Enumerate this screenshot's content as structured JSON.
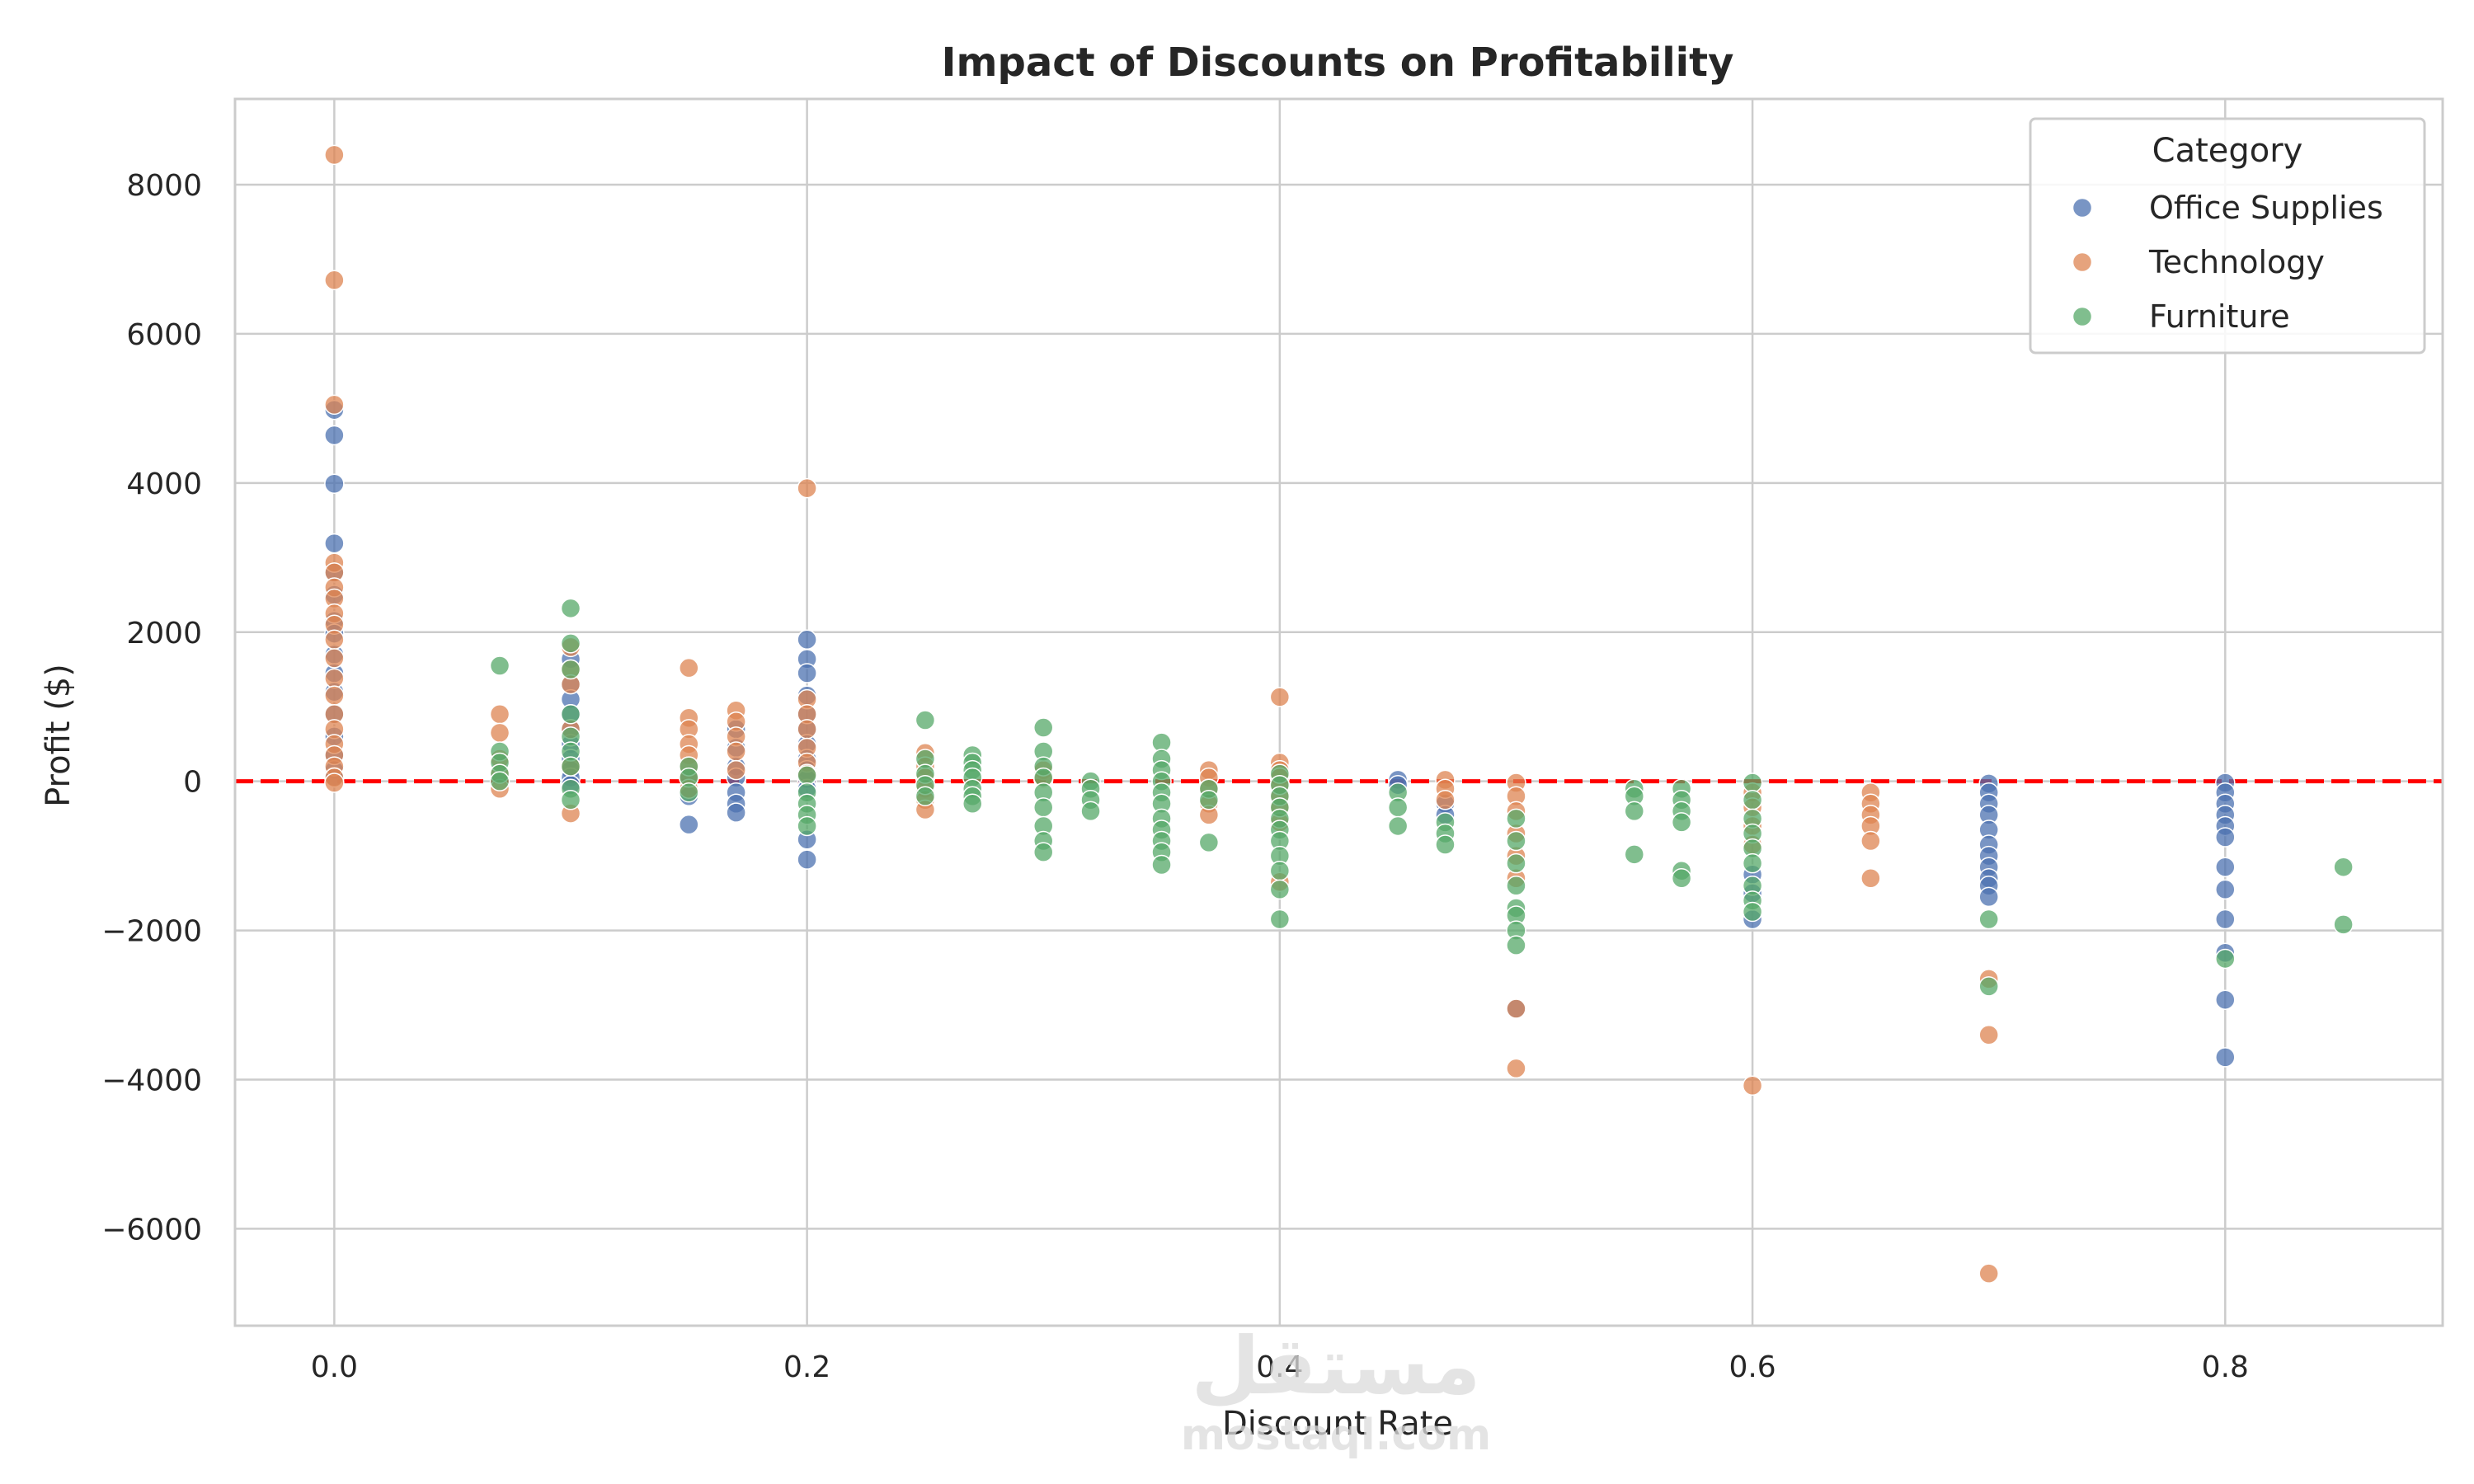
{
  "chart_data": {
    "type": "scatter",
    "title": "Impact of Discounts on Profitability",
    "xlabel": "Discount Rate",
    "ylabel": "Profit ($)",
    "xlim": [
      -0.042,
      0.892
    ],
    "ylim": [
      -7300,
      9150
    ],
    "xticks": [
      0.0,
      0.2,
      0.4,
      0.6,
      0.8
    ],
    "xtick_labels": [
      "0.0",
      "0.2",
      "0.4",
      "0.6",
      "0.8"
    ],
    "yticks": [
      -6000,
      -4000,
      -2000,
      0,
      2000,
      4000,
      6000,
      8000
    ],
    "ytick_labels": [
      "−6000",
      "−4000",
      "−2000",
      "0",
      "2000",
      "4000",
      "6000",
      "8000"
    ],
    "grid": true,
    "reference_line": {
      "y": 0,
      "color": "#ff0000",
      "style": "dashed"
    },
    "legend": {
      "title": "Category",
      "position": "top-right",
      "entries": [
        "Office Supplies",
        "Technology",
        "Furniture"
      ]
    },
    "series": [
      {
        "name": "Office Supplies",
        "color": "#4c72b0",
        "points": [
          [
            0.0,
            4980
          ],
          [
            0.0,
            4640
          ],
          [
            0.0,
            3990
          ],
          [
            0.0,
            3190
          ],
          [
            0.0,
            2800
          ],
          [
            0.0,
            2500
          ],
          [
            0.0,
            2150
          ],
          [
            0.0,
            1980
          ],
          [
            0.0,
            1700
          ],
          [
            0.0,
            1450
          ],
          [
            0.0,
            1200
          ],
          [
            0.0,
            900
          ],
          [
            0.0,
            600
          ],
          [
            0.0,
            350
          ],
          [
            0.0,
            150
          ],
          [
            0.0,
            60
          ],
          [
            0.1,
            1640
          ],
          [
            0.1,
            1300
          ],
          [
            0.1,
            1100
          ],
          [
            0.1,
            900
          ],
          [
            0.1,
            700
          ],
          [
            0.1,
            500
          ],
          [
            0.1,
            300
          ],
          [
            0.1,
            150
          ],
          [
            0.1,
            50
          ],
          [
            0.1,
            -50
          ],
          [
            0.15,
            -580
          ],
          [
            0.15,
            -200
          ],
          [
            0.15,
            80
          ],
          [
            0.17,
            700
          ],
          [
            0.17,
            450
          ],
          [
            0.17,
            200
          ],
          [
            0.17,
            50
          ],
          [
            0.17,
            -150
          ],
          [
            0.17,
            -300
          ],
          [
            0.17,
            -420
          ],
          [
            0.2,
            1900
          ],
          [
            0.2,
            1640
          ],
          [
            0.2,
            1450
          ],
          [
            0.2,
            1150
          ],
          [
            0.2,
            900
          ],
          [
            0.2,
            700
          ],
          [
            0.2,
            500
          ],
          [
            0.2,
            300
          ],
          [
            0.2,
            150
          ],
          [
            0.2,
            30
          ],
          [
            0.2,
            -100
          ],
          [
            0.2,
            -780
          ],
          [
            0.2,
            -1050
          ],
          [
            0.45,
            20
          ],
          [
            0.45,
            -50
          ],
          [
            0.47,
            -300
          ],
          [
            0.47,
            -450
          ],
          [
            0.5,
            -3050
          ],
          [
            0.6,
            -1250
          ],
          [
            0.6,
            -1500
          ],
          [
            0.6,
            -1850
          ],
          [
            0.7,
            -30
          ],
          [
            0.7,
            -150
          ],
          [
            0.7,
            -300
          ],
          [
            0.7,
            -450
          ],
          [
            0.7,
            -650
          ],
          [
            0.7,
            -850
          ],
          [
            0.7,
            -1000
          ],
          [
            0.7,
            -1150
          ],
          [
            0.7,
            -1300
          ],
          [
            0.7,
            -1400
          ],
          [
            0.7,
            -1550
          ],
          [
            0.8,
            -20
          ],
          [
            0.8,
            -150
          ],
          [
            0.8,
            -300
          ],
          [
            0.8,
            -450
          ],
          [
            0.8,
            -600
          ],
          [
            0.8,
            -750
          ],
          [
            0.8,
            -1150
          ],
          [
            0.8,
            -1450
          ],
          [
            0.8,
            -1850
          ],
          [
            0.8,
            -2300
          ],
          [
            0.8,
            -2930
          ],
          [
            0.8,
            -3700
          ]
        ]
      },
      {
        "name": "Technology",
        "color": "#dd8452",
        "points": [
          [
            0.0,
            8400
          ],
          [
            0.0,
            6720
          ],
          [
            0.0,
            5050
          ],
          [
            0.0,
            2930
          ],
          [
            0.0,
            2800
          ],
          [
            0.0,
            2600
          ],
          [
            0.0,
            2450
          ],
          [
            0.0,
            2250
          ],
          [
            0.0,
            2100
          ],
          [
            0.0,
            1900
          ],
          [
            0.0,
            1650
          ],
          [
            0.0,
            1380
          ],
          [
            0.0,
            1150
          ],
          [
            0.0,
            900
          ],
          [
            0.0,
            700
          ],
          [
            0.0,
            500
          ],
          [
            0.0,
            350
          ],
          [
            0.0,
            200
          ],
          [
            0.0,
            50
          ],
          [
            0.0,
            -20
          ],
          [
            0.07,
            900
          ],
          [
            0.07,
            650
          ],
          [
            0.07,
            300
          ],
          [
            0.07,
            100
          ],
          [
            0.07,
            -100
          ],
          [
            0.1,
            1800
          ],
          [
            0.1,
            1500
          ],
          [
            0.1,
            1300
          ],
          [
            0.1,
            700
          ],
          [
            0.1,
            200
          ],
          [
            0.1,
            -430
          ],
          [
            0.15,
            1520
          ],
          [
            0.15,
            850
          ],
          [
            0.15,
            700
          ],
          [
            0.15,
            500
          ],
          [
            0.15,
            350
          ],
          [
            0.15,
            200
          ],
          [
            0.15,
            50
          ],
          [
            0.15,
            -100
          ],
          [
            0.17,
            950
          ],
          [
            0.17,
            800
          ],
          [
            0.17,
            600
          ],
          [
            0.17,
            400
          ],
          [
            0.17,
            150
          ],
          [
            0.2,
            3930
          ],
          [
            0.2,
            1100
          ],
          [
            0.2,
            900
          ],
          [
            0.2,
            700
          ],
          [
            0.2,
            450
          ],
          [
            0.2,
            250
          ],
          [
            0.2,
            100
          ],
          [
            0.25,
            380
          ],
          [
            0.25,
            200
          ],
          [
            0.25,
            50
          ],
          [
            0.25,
            -100
          ],
          [
            0.25,
            -250
          ],
          [
            0.25,
            -380
          ],
          [
            0.3,
            150
          ],
          [
            0.3,
            30
          ],
          [
            0.37,
            150
          ],
          [
            0.37,
            50
          ],
          [
            0.37,
            -100
          ],
          [
            0.37,
            -300
          ],
          [
            0.37,
            -450
          ],
          [
            0.4,
            1130
          ],
          [
            0.4,
            250
          ],
          [
            0.4,
            150
          ],
          [
            0.4,
            50
          ],
          [
            0.4,
            -50
          ],
          [
            0.4,
            -200
          ],
          [
            0.4,
            -350
          ],
          [
            0.4,
            -550
          ],
          [
            0.4,
            -1350
          ],
          [
            0.47,
            20
          ],
          [
            0.47,
            -100
          ],
          [
            0.47,
            -250
          ],
          [
            0.5,
            -20
          ],
          [
            0.5,
            -200
          ],
          [
            0.5,
            -400
          ],
          [
            0.5,
            -700
          ],
          [
            0.5,
            -1000
          ],
          [
            0.5,
            -1300
          ],
          [
            0.5,
            -3050
          ],
          [
            0.5,
            -3850
          ],
          [
            0.6,
            -150
          ],
          [
            0.6,
            -350
          ],
          [
            0.6,
            -600
          ],
          [
            0.6,
            -850
          ],
          [
            0.6,
            -4080
          ],
          [
            0.65,
            -150
          ],
          [
            0.65,
            -300
          ],
          [
            0.65,
            -450
          ],
          [
            0.65,
            -600
          ],
          [
            0.65,
            -800
          ],
          [
            0.65,
            -1300
          ],
          [
            0.7,
            -2650
          ],
          [
            0.7,
            -3400
          ],
          [
            0.7,
            -6600
          ]
        ]
      },
      {
        "name": "Furniture",
        "color": "#55a868",
        "points": [
          [
            0.07,
            1550
          ],
          [
            0.07,
            400
          ],
          [
            0.07,
            250
          ],
          [
            0.07,
            100
          ],
          [
            0.07,
            0
          ],
          [
            0.1,
            2320
          ],
          [
            0.1,
            1850
          ],
          [
            0.1,
            1500
          ],
          [
            0.1,
            900
          ],
          [
            0.1,
            600
          ],
          [
            0.1,
            400
          ],
          [
            0.1,
            200
          ],
          [
            0.1,
            -100
          ],
          [
            0.1,
            -250
          ],
          [
            0.15,
            200
          ],
          [
            0.15,
            50
          ],
          [
            0.15,
            -150
          ],
          [
            0.2,
            80
          ],
          [
            0.2,
            -150
          ],
          [
            0.2,
            -300
          ],
          [
            0.2,
            -450
          ],
          [
            0.2,
            -600
          ],
          [
            0.25,
            820
          ],
          [
            0.25,
            300
          ],
          [
            0.25,
            100
          ],
          [
            0.25,
            -50
          ],
          [
            0.25,
            -200
          ],
          [
            0.27,
            350
          ],
          [
            0.27,
            250
          ],
          [
            0.27,
            150
          ],
          [
            0.27,
            50
          ],
          [
            0.27,
            -100
          ],
          [
            0.27,
            -200
          ],
          [
            0.27,
            -300
          ],
          [
            0.3,
            720
          ],
          [
            0.3,
            400
          ],
          [
            0.3,
            200
          ],
          [
            0.3,
            50
          ],
          [
            0.3,
            -150
          ],
          [
            0.3,
            -350
          ],
          [
            0.3,
            -600
          ],
          [
            0.3,
            -800
          ],
          [
            0.3,
            -950
          ],
          [
            0.32,
            0
          ],
          [
            0.32,
            -100
          ],
          [
            0.32,
            -250
          ],
          [
            0.32,
            -400
          ],
          [
            0.35,
            520
          ],
          [
            0.35,
            300
          ],
          [
            0.35,
            150
          ],
          [
            0.35,
            0
          ],
          [
            0.35,
            -150
          ],
          [
            0.35,
            -300
          ],
          [
            0.35,
            -500
          ],
          [
            0.35,
            -650
          ],
          [
            0.35,
            -800
          ],
          [
            0.35,
            -950
          ],
          [
            0.35,
            -1120
          ],
          [
            0.37,
            -100
          ],
          [
            0.37,
            -250
          ],
          [
            0.37,
            -820
          ],
          [
            0.4,
            100
          ],
          [
            0.4,
            -50
          ],
          [
            0.4,
            -200
          ],
          [
            0.4,
            -350
          ],
          [
            0.4,
            -500
          ],
          [
            0.4,
            -650
          ],
          [
            0.4,
            -800
          ],
          [
            0.4,
            -1000
          ],
          [
            0.4,
            -1200
          ],
          [
            0.4,
            -1450
          ],
          [
            0.4,
            -1850
          ],
          [
            0.45,
            -150
          ],
          [
            0.45,
            -350
          ],
          [
            0.45,
            -600
          ],
          [
            0.47,
            -550
          ],
          [
            0.47,
            -700
          ],
          [
            0.47,
            -850
          ],
          [
            0.5,
            -500
          ],
          [
            0.5,
            -800
          ],
          [
            0.5,
            -1100
          ],
          [
            0.5,
            -1400
          ],
          [
            0.5,
            -1700
          ],
          [
            0.5,
            -1800
          ],
          [
            0.5,
            -2000
          ],
          [
            0.5,
            -2200
          ],
          [
            0.55,
            -100
          ],
          [
            0.55,
            -200
          ],
          [
            0.55,
            -400
          ],
          [
            0.55,
            -980
          ],
          [
            0.57,
            -100
          ],
          [
            0.57,
            -250
          ],
          [
            0.57,
            -400
          ],
          [
            0.57,
            -550
          ],
          [
            0.57,
            -1200
          ],
          [
            0.57,
            -1300
          ],
          [
            0.6,
            -20
          ],
          [
            0.6,
            -250
          ],
          [
            0.6,
            -500
          ],
          [
            0.6,
            -700
          ],
          [
            0.6,
            -900
          ],
          [
            0.6,
            -1100
          ],
          [
            0.6,
            -1400
          ],
          [
            0.6,
            -1600
          ],
          [
            0.6,
            -1750
          ],
          [
            0.7,
            -1850
          ],
          [
            0.7,
            -2750
          ],
          [
            0.8,
            -2380
          ],
          [
            0.85,
            -1150
          ],
          [
            0.85,
            -1920
          ]
        ]
      }
    ]
  },
  "watermark": {
    "arabic": "مستقل",
    "latin": "mostaql.com"
  }
}
